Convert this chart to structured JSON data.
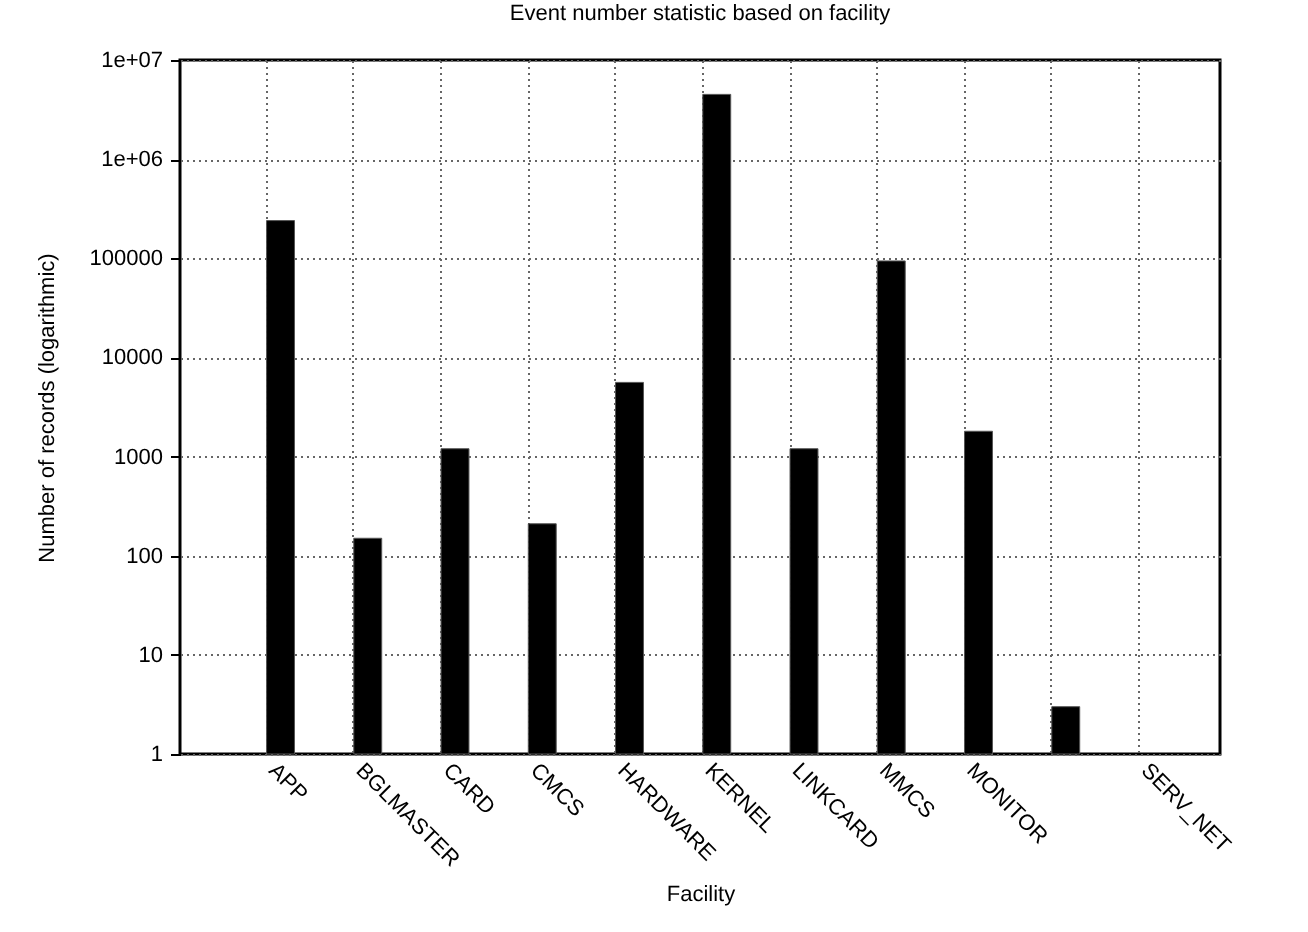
{
  "chart_data": {
    "type": "bar",
    "title": "Event number statistic based on facility",
    "xlabel": "Facility",
    "ylabel": "Number of records (logarithmic)",
    "categories": [
      "APP",
      "BGLMASTER",
      "CARD",
      "CMCS",
      "HARDWARE",
      "KERNEL",
      "LINKCARD",
      "MMCS",
      "MONITOR",
      null,
      "SERV_NET"
    ],
    "values": [
      240000,
      150,
      1200,
      210,
      5600,
      4500000,
      1200,
      94000,
      1800,
      3,
      null
    ],
    "color": "#000000",
    "log": "y",
    "ylim": [
      1,
      10000000
    ],
    "yticks": [
      1,
      10,
      100,
      1000,
      10000,
      100000,
      {
        "value": 1000000,
        "label": "1e+06"
      },
      {
        "value": 10000000,
        "label": "1e+07"
      }
    ],
    "grid": true
  }
}
